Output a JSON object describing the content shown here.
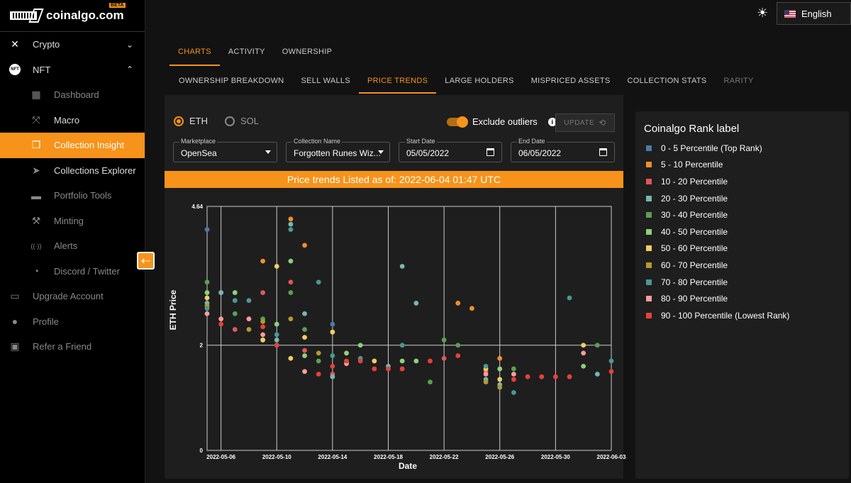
{
  "brand": {
    "name": "coinalgo.com",
    "badge": "BETA"
  },
  "sidebar": {
    "items": [
      {
        "label": "Crypto",
        "icon": "network-icon",
        "type": "top",
        "chevron": "⌄"
      },
      {
        "label": "NFT",
        "icon": "nft-icon",
        "type": "top",
        "chevron": "⌃"
      },
      {
        "label": "Dashboard",
        "icon": "dashboard-icon",
        "type": "sub",
        "dim": true
      },
      {
        "label": "Macro",
        "icon": "expand-icon",
        "type": "sub"
      },
      {
        "label": "Collection Insight",
        "icon": "collection-icon",
        "type": "sub",
        "active": true
      },
      {
        "label": "Collections Explorer",
        "icon": "compass-icon",
        "type": "sub"
      },
      {
        "label": "Portfolio Tools",
        "icon": "briefcase-icon",
        "type": "sub",
        "dim": true
      },
      {
        "label": "Minting",
        "icon": "hammer-icon",
        "type": "sub",
        "dim": true
      },
      {
        "label": "Alerts",
        "icon": "broadcast-icon",
        "type": "sub",
        "dim": true
      },
      {
        "label": "Discord / Twitter",
        "icon": "chat-icon",
        "type": "sub",
        "dim": true
      },
      {
        "label": "Upgrade Account",
        "icon": "card-icon",
        "type": "top",
        "dim": true
      },
      {
        "label": "Profile",
        "icon": "person-icon",
        "type": "top",
        "dim": true
      },
      {
        "label": "Refer a Friend",
        "icon": "gift-icon",
        "type": "top",
        "dim": true
      }
    ]
  },
  "topbar": {
    "language": "English"
  },
  "tabs_primary": [
    {
      "label": "CHARTS",
      "active": true
    },
    {
      "label": "ACTIVITY"
    },
    {
      "label": "OWNERSHIP"
    }
  ],
  "tabs_secondary": [
    {
      "label": "OWNERSHIP BREAKDOWN"
    },
    {
      "label": "SELL WALLS"
    },
    {
      "label": "PRICE TRENDS",
      "active": true
    },
    {
      "label": "LARGE HOLDERS"
    },
    {
      "label": "MISPRICED ASSETS"
    },
    {
      "label": "COLLECTION STATS"
    },
    {
      "label": "RARITY",
      "dim": true
    }
  ],
  "controls": {
    "currency_options": [
      {
        "label": "ETH",
        "selected": true
      },
      {
        "label": "SOL",
        "selected": false
      }
    ],
    "exclude_outliers_label": "Exclude outliers",
    "exclude_outliers_on": true,
    "update_label": "UPDATE",
    "marketplace": {
      "label": "Marketplace",
      "value": "OpenSea"
    },
    "collection": {
      "label": "Collection Name",
      "value": "Forgotten Runes Wiz..."
    },
    "start_date": {
      "label": "Start Date",
      "value": "05/05/2022"
    },
    "end_date": {
      "label": "End Date",
      "value": "06/05/2022"
    }
  },
  "banner": "Price trends Listed as of: 2022-06-04 01:47 UTC",
  "chart_data": {
    "type": "scatter",
    "xlabel": "Date",
    "ylabel": "ETH Price",
    "yticks": [
      "0",
      "2",
      "4.64"
    ],
    "ylim": [
      0,
      4.64
    ],
    "xlim": [
      "2022-05-05",
      "2022-06-03"
    ],
    "xticks": [
      "2022-05-06",
      "2022-05-10",
      "2022-05-14",
      "2022-05-18",
      "2022-05-22",
      "2022-05-26",
      "2022-05-30",
      "2022-06-03"
    ],
    "grid": true,
    "series": [
      {
        "name": "0 - 5 Percentile (Top Rank)",
        "color": "#4e79a7",
        "points": [
          [
            "2022-05-05",
            4.2
          ],
          [
            "2022-05-14",
            2.4
          ]
        ]
      },
      {
        "name": "5 - 10 Percentile",
        "color": "#f28e2b",
        "points": [
          [
            "2022-05-09",
            3.6
          ],
          [
            "2022-05-11",
            4.4
          ],
          [
            "2022-05-12",
            3.9
          ],
          [
            "2022-05-23",
            2.8
          ],
          [
            "2022-05-24",
            2.7
          ],
          [
            "2022-05-26",
            1.75
          ]
        ]
      },
      {
        "name": "10 - 20 Percentile",
        "color": "#e15759",
        "points": [
          [
            "2022-05-06",
            3.0
          ],
          [
            "2022-05-07",
            2.3
          ],
          [
            "2022-05-09",
            3.0
          ],
          [
            "2022-05-11",
            3.2
          ],
          [
            "2022-05-12",
            1.9
          ],
          [
            "2022-05-14",
            1.45
          ],
          [
            "2022-05-15",
            1.85
          ],
          [
            "2022-05-22",
            1.75
          ],
          [
            "2022-05-25",
            1.5
          ]
        ]
      },
      {
        "name": "20 - 30 Percentile",
        "color": "#76b7b2",
        "points": [
          [
            "2022-05-05",
            2.8
          ],
          [
            "2022-05-06",
            3.0
          ],
          [
            "2022-05-10",
            2.1
          ],
          [
            "2022-05-11",
            4.3
          ],
          [
            "2022-05-12",
            2.6
          ],
          [
            "2022-05-14",
            1.4
          ],
          [
            "2022-05-18",
            1.6
          ],
          [
            "2022-05-19",
            3.5
          ],
          [
            "2022-05-20",
            2.8
          ],
          [
            "2022-05-25",
            1.35
          ],
          [
            "2022-05-26",
            1.25
          ],
          [
            "2022-06-02",
            1.45
          ]
        ]
      },
      {
        "name": "30 - 40 Percentile",
        "color": "#59a14f",
        "points": [
          [
            "2022-05-05",
            3.2
          ],
          [
            "2022-05-07",
            2.6
          ],
          [
            "2022-05-09",
            2.5
          ],
          [
            "2022-05-11",
            3.0
          ],
          [
            "2022-05-12",
            2.3
          ],
          [
            "2022-05-13",
            1.7
          ],
          [
            "2022-05-21",
            1.3
          ],
          [
            "2022-05-22",
            2.1
          ],
          [
            "2022-05-23",
            2.0
          ],
          [
            "2022-05-27",
            1.55
          ],
          [
            "2022-06-02",
            2.0
          ]
        ]
      },
      {
        "name": "40 - 50 Percentile",
        "color": "#8cd17d",
        "points": [
          [
            "2022-05-05",
            3.0
          ],
          [
            "2022-05-07",
            3.0
          ],
          [
            "2022-05-09",
            2.1
          ],
          [
            "2022-05-10",
            2.4
          ],
          [
            "2022-05-11",
            3.6
          ],
          [
            "2022-05-12",
            1.8
          ],
          [
            "2022-05-15",
            1.85
          ],
          [
            "2022-05-16",
            2.0
          ],
          [
            "2022-05-19",
            1.7
          ],
          [
            "2022-05-20",
            1.7
          ],
          [
            "2022-05-26",
            1.55
          ],
          [
            "2022-06-01",
            1.6
          ]
        ]
      },
      {
        "name": "50 - 60 Percentile",
        "color": "#f1ce63",
        "points": [
          [
            "2022-05-05",
            2.9
          ],
          [
            "2022-05-09",
            2.1
          ],
          [
            "2022-05-10",
            3.5
          ],
          [
            "2022-05-11",
            1.75
          ],
          [
            "2022-05-12",
            2.15
          ],
          [
            "2022-05-14",
            2.25
          ],
          [
            "2022-05-17",
            1.7
          ],
          [
            "2022-05-25",
            1.55
          ],
          [
            "2022-05-26",
            1.35
          ],
          [
            "2022-06-01",
            2.0
          ]
        ]
      },
      {
        "name": "60 - 70 Percentile",
        "color": "#b6992d",
        "points": [
          [
            "2022-05-05",
            2.75
          ],
          [
            "2022-05-08",
            2.3
          ],
          [
            "2022-05-09",
            2.45
          ],
          [
            "2022-05-11",
            2.5
          ],
          [
            "2022-05-13",
            1.85
          ],
          [
            "2022-05-25",
            1.3
          ],
          [
            "2022-05-26",
            1.2
          ]
        ]
      },
      {
        "name": "70 - 80 Percentile",
        "color": "#499894",
        "points": [
          [
            "2022-05-05",
            2.7
          ],
          [
            "2022-05-07",
            2.85
          ],
          [
            "2022-05-08",
            2.85
          ],
          [
            "2022-05-10",
            2.2
          ],
          [
            "2022-05-11",
            4.2
          ],
          [
            "2022-05-13",
            3.2
          ],
          [
            "2022-05-14",
            1.8
          ],
          [
            "2022-05-16",
            1.75
          ],
          [
            "2022-05-19",
            2.0
          ],
          [
            "2022-05-25",
            1.6
          ],
          [
            "2022-05-27",
            1.1
          ],
          [
            "2022-05-31",
            2.9
          ],
          [
            "2022-06-03",
            1.7
          ]
        ]
      },
      {
        "name": "80 - 90 Percentile",
        "color": "#ff9d9a",
        "points": [
          [
            "2022-05-05",
            2.6
          ],
          [
            "2022-05-06",
            2.5
          ],
          [
            "2022-05-08",
            2.5
          ],
          [
            "2022-05-09",
            2.2
          ],
          [
            "2022-05-10",
            2.0
          ],
          [
            "2022-05-12",
            1.5
          ],
          [
            "2022-05-15",
            1.65
          ],
          [
            "2022-05-25",
            1.45
          ],
          [
            "2022-05-27",
            1.45
          ],
          [
            "2022-06-01",
            1.85
          ]
        ]
      },
      {
        "name": "90 - 100 Percentile (Lowest Rank)",
        "color": "#e8413a",
        "points": [
          [
            "2022-05-06",
            2.4
          ],
          [
            "2022-05-09",
            2.35
          ],
          [
            "2022-05-10",
            2.0
          ],
          [
            "2022-05-13",
            1.45
          ],
          [
            "2022-05-14",
            1.6
          ],
          [
            "2022-05-15",
            1.7
          ],
          [
            "2022-05-16",
            1.7
          ],
          [
            "2022-05-17",
            1.55
          ],
          [
            "2022-05-18",
            1.55
          ],
          [
            "2022-05-19",
            1.55
          ],
          [
            "2022-05-21",
            1.7
          ],
          [
            "2022-05-23",
            1.8
          ],
          [
            "2022-05-27",
            1.35
          ],
          [
            "2022-05-28",
            1.4
          ],
          [
            "2022-05-29",
            1.4
          ],
          [
            "2022-05-30",
            1.4
          ],
          [
            "2022-05-31",
            1.4
          ],
          [
            "2022-06-03",
            1.5
          ]
        ]
      }
    ]
  },
  "legend_title": "Coinalgo Rank label"
}
